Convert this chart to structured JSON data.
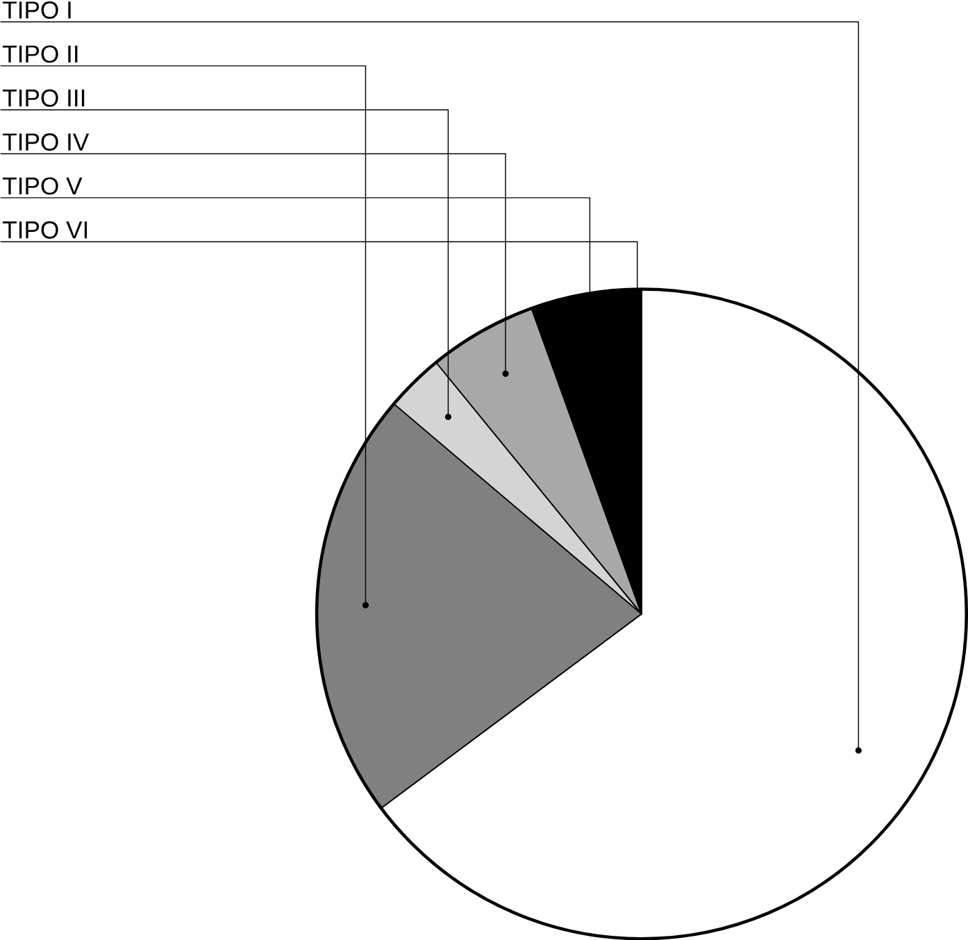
{
  "chart_data": {
    "type": "pie",
    "categories": [
      "TIPO  I",
      "TIPO II",
      "TIPO III",
      "TIPO  IV",
      "TIPO  V",
      "TIPO  VI"
    ],
    "values": [
      64.8,
      21.4,
      2.9,
      5.4,
      5.0,
      0.5
    ],
    "colors": [
      "#ffffff",
      "#808080",
      "#d4d4d4",
      "#a8a8a8",
      "#000000",
      "#000000"
    ]
  }
}
